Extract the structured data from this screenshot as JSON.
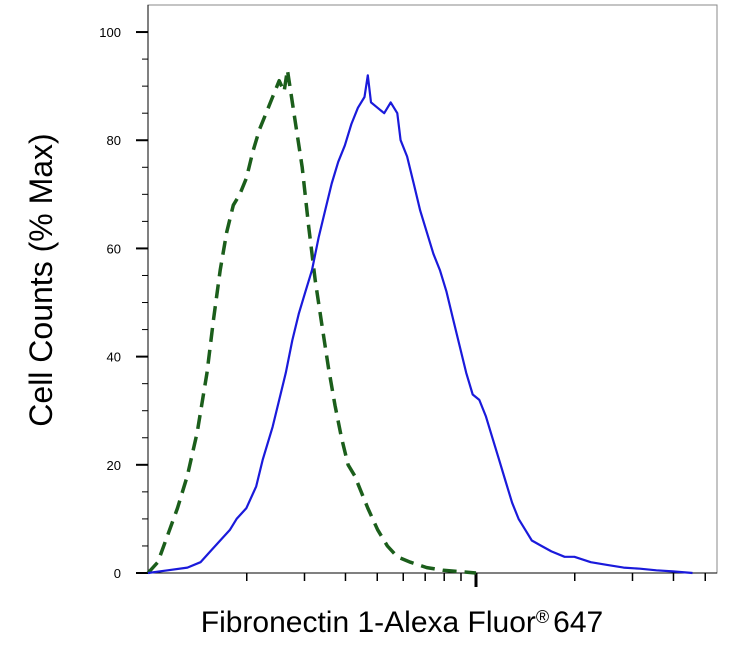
{
  "chart_data": {
    "type": "line",
    "title": "",
    "xlabel": "Fibronectin 1-Alexa Fluor",
    "xlabel_mark": "®",
    "xlabel_suffix": "647",
    "ylabel": "Cell Counts (% Max)",
    "xscale": "log",
    "ylim": [
      0,
      105
    ],
    "y_ticks": [
      0,
      20,
      40,
      60,
      80,
      100
    ],
    "grid": false,
    "legend": "none",
    "series": [
      {
        "style": "dashed",
        "color": "#1b5e1b",
        "points": [
          [
            0,
            0
          ],
          [
            0.03,
            2
          ],
          [
            0.06,
            7
          ],
          [
            0.09,
            12
          ],
          [
            0.12,
            18
          ],
          [
            0.15,
            26
          ],
          [
            0.18,
            37
          ],
          [
            0.2,
            47
          ],
          [
            0.22,
            56
          ],
          [
            0.24,
            63
          ],
          [
            0.26,
            68
          ],
          [
            0.28,
            70
          ],
          [
            0.3,
            73
          ],
          [
            0.32,
            78
          ],
          [
            0.34,
            82
          ],
          [
            0.36,
            85
          ],
          [
            0.38,
            88
          ],
          [
            0.4,
            91
          ],
          [
            0.415,
            89
          ],
          [
            0.425,
            93
          ],
          [
            0.435,
            89
          ],
          [
            0.45,
            83
          ],
          [
            0.47,
            75
          ],
          [
            0.49,
            64
          ],
          [
            0.51,
            54
          ],
          [
            0.53,
            46
          ],
          [
            0.55,
            38
          ],
          [
            0.57,
            31
          ],
          [
            0.59,
            25
          ],
          [
            0.61,
            20
          ],
          [
            0.63,
            18
          ],
          [
            0.65,
            15
          ],
          [
            0.67,
            12
          ],
          [
            0.7,
            8
          ],
          [
            0.73,
            5
          ],
          [
            0.76,
            3
          ],
          [
            0.8,
            2
          ],
          [
            0.85,
            1
          ],
          [
            0.9,
            0.5
          ],
          [
            1.0,
            0
          ]
        ]
      },
      {
        "style": "solid",
        "color": "#1a1adb",
        "points": [
          [
            0,
            0
          ],
          [
            0.06,
            0.5
          ],
          [
            0.12,
            1
          ],
          [
            0.16,
            2
          ],
          [
            0.19,
            4
          ],
          [
            0.22,
            6
          ],
          [
            0.25,
            8
          ],
          [
            0.27,
            10
          ],
          [
            0.3,
            12
          ],
          [
            0.33,
            16
          ],
          [
            0.35,
            21
          ],
          [
            0.38,
            27
          ],
          [
            0.4,
            32
          ],
          [
            0.42,
            37
          ],
          [
            0.44,
            43
          ],
          [
            0.46,
            48
          ],
          [
            0.48,
            52
          ],
          [
            0.5,
            56
          ],
          [
            0.52,
            62
          ],
          [
            0.54,
            67
          ],
          [
            0.56,
            72
          ],
          [
            0.58,
            76
          ],
          [
            0.6,
            79
          ],
          [
            0.62,
            83
          ],
          [
            0.64,
            86
          ],
          [
            0.66,
            88
          ],
          [
            0.67,
            92
          ],
          [
            0.68,
            87
          ],
          [
            0.7,
            86
          ],
          [
            0.72,
            85
          ],
          [
            0.74,
            87
          ],
          [
            0.76,
            85
          ],
          [
            0.77,
            80
          ],
          [
            0.79,
            77
          ],
          [
            0.81,
            72
          ],
          [
            0.83,
            67
          ],
          [
            0.85,
            63
          ],
          [
            0.87,
            59
          ],
          [
            0.89,
            56
          ],
          [
            0.91,
            52
          ],
          [
            0.93,
            47
          ],
          [
            0.95,
            42
          ],
          [
            0.97,
            37
          ],
          [
            0.99,
            33
          ],
          [
            1.01,
            32
          ],
          [
            1.03,
            29
          ],
          [
            1.05,
            25
          ],
          [
            1.07,
            21
          ],
          [
            1.09,
            17
          ],
          [
            1.11,
            13
          ],
          [
            1.13,
            10
          ],
          [
            1.15,
            8
          ],
          [
            1.17,
            6
          ],
          [
            1.2,
            5
          ],
          [
            1.23,
            4
          ],
          [
            1.27,
            3
          ],
          [
            1.3,
            3
          ],
          [
            1.35,
            2
          ],
          [
            1.4,
            1.5
          ],
          [
            1.45,
            1
          ],
          [
            1.5,
            0.8
          ],
          [
            1.55,
            0.5
          ],
          [
            1.6,
            0.3
          ],
          [
            1.66,
            0
          ]
        ]
      }
    ]
  }
}
